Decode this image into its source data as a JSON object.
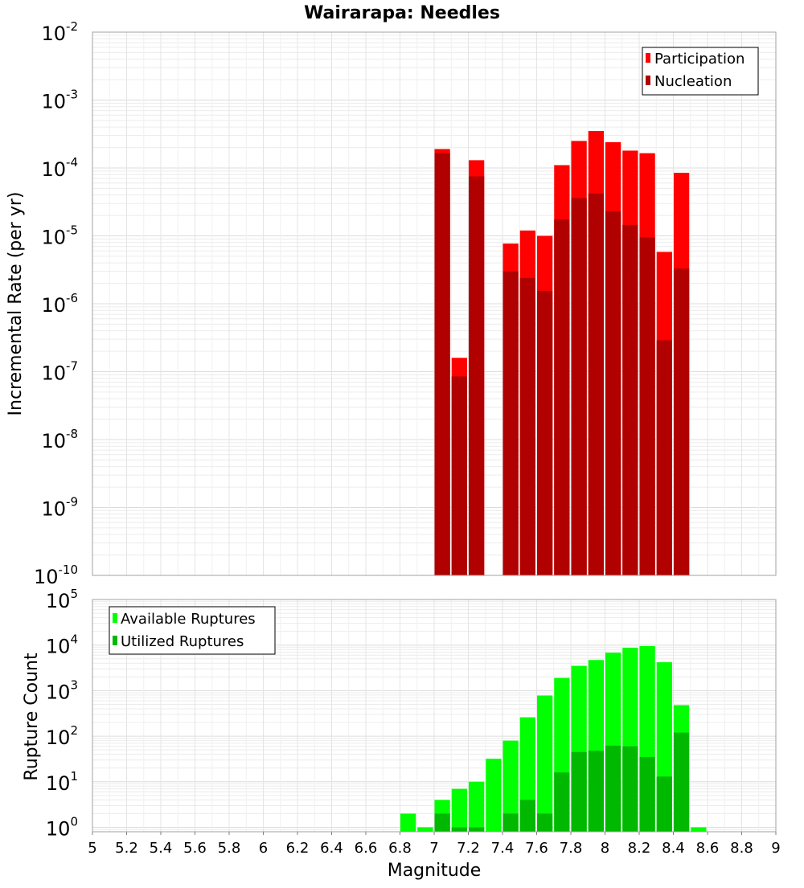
{
  "chart_data": [
    {
      "type": "bar",
      "title": "Wairarapa: Needles",
      "xlabel": "",
      "ylabel": "Incremental Rate (per yr)",
      "yscale": "log",
      "ylim": [
        1e-10,
        0.01
      ],
      "xlim": [
        5,
        9
      ],
      "bin_width": 0.1,
      "grid": true,
      "legend_position": "top-right",
      "y_ticks": [
        {
          "base": "10",
          "exp": "-10"
        },
        {
          "base": "10",
          "exp": "-9"
        },
        {
          "base": "10",
          "exp": "-8"
        },
        {
          "base": "10",
          "exp": "-7"
        },
        {
          "base": "10",
          "exp": "-6"
        },
        {
          "base": "10",
          "exp": "-5"
        },
        {
          "base": "10",
          "exp": "-4"
        },
        {
          "base": "10",
          "exp": "-3"
        },
        {
          "base": "10",
          "exp": "-2"
        }
      ],
      "series": [
        {
          "name": "Participation",
          "color": "#ff0000",
          "x": [
            7.05,
            7.15,
            7.25,
            7.45,
            7.55,
            7.65,
            7.75,
            7.85,
            7.95,
            8.05,
            8.15,
            8.25,
            8.35,
            8.45
          ],
          "values": [
            0.00019,
            1.6e-07,
            0.00013,
            7.7e-06,
            1.2e-05,
            1e-05,
            0.00011,
            0.00025,
            0.00035,
            0.00024,
            0.00018,
            0.000165,
            5.8e-06,
            8.5e-05
          ]
        },
        {
          "name": "Nucleation",
          "color": "#b00000",
          "x": [
            7.05,
            7.15,
            7.25,
            7.45,
            7.55,
            7.65,
            7.75,
            7.85,
            7.95,
            8.05,
            8.15,
            8.25,
            8.35,
            8.45
          ],
          "values": [
            0.000165,
            8.5e-08,
            7.5e-05,
            3e-06,
            2.4e-06,
            1.55e-06,
            1.75e-05,
            3.6e-05,
            4.2e-05,
            2.3e-05,
            1.45e-05,
            9.5e-06,
            2.9e-07,
            3.3e-06
          ]
        }
      ]
    },
    {
      "type": "bar",
      "title": "",
      "xlabel": "Magnitude",
      "ylabel": "Rupture Count",
      "yscale": "log",
      "ylim": [
        0.8,
        100000
      ],
      "xlim": [
        5,
        9
      ],
      "bin_width": 0.1,
      "grid": true,
      "legend_position": "top-left",
      "x_ticks": [
        "5",
        "5.2",
        "5.4",
        "5.6",
        "5.8",
        "6",
        "6.2",
        "6.4",
        "6.6",
        "6.8",
        "7",
        "7.2",
        "7.4",
        "7.6",
        "7.8",
        "8",
        "8.2",
        "8.4",
        "8.6",
        "8.8",
        "9"
      ],
      "y_ticks": [
        {
          "base": "10",
          "exp": "0"
        },
        {
          "base": "10",
          "exp": "1"
        },
        {
          "base": "10",
          "exp": "2"
        },
        {
          "base": "10",
          "exp": "3"
        },
        {
          "base": "10",
          "exp": "4"
        },
        {
          "base": "10",
          "exp": "5"
        }
      ],
      "series": [
        {
          "name": "Available Ruptures",
          "color": "#00ff00",
          "x": [
            6.85,
            6.95,
            7.05,
            7.15,
            7.25,
            7.35,
            7.45,
            7.55,
            7.65,
            7.75,
            7.85,
            7.95,
            8.05,
            8.15,
            8.25,
            8.35,
            8.45,
            8.55
          ],
          "values": [
            2,
            1,
            4,
            7,
            10,
            32,
            80,
            260,
            780,
            1900,
            3500,
            4700,
            6800,
            8700,
            9500,
            4200,
            480,
            1
          ]
        },
        {
          "name": "Utilized Ruptures",
          "color": "#00b800",
          "x": [
            7.05,
            7.15,
            7.25,
            7.45,
            7.55,
            7.65,
            7.75,
            7.85,
            7.95,
            8.05,
            8.15,
            8.25,
            8.35,
            8.45
          ],
          "values": [
            2,
            1,
            1,
            2,
            4,
            2,
            16,
            45,
            48,
            62,
            60,
            35,
            13,
            120
          ]
        }
      ]
    }
  ]
}
